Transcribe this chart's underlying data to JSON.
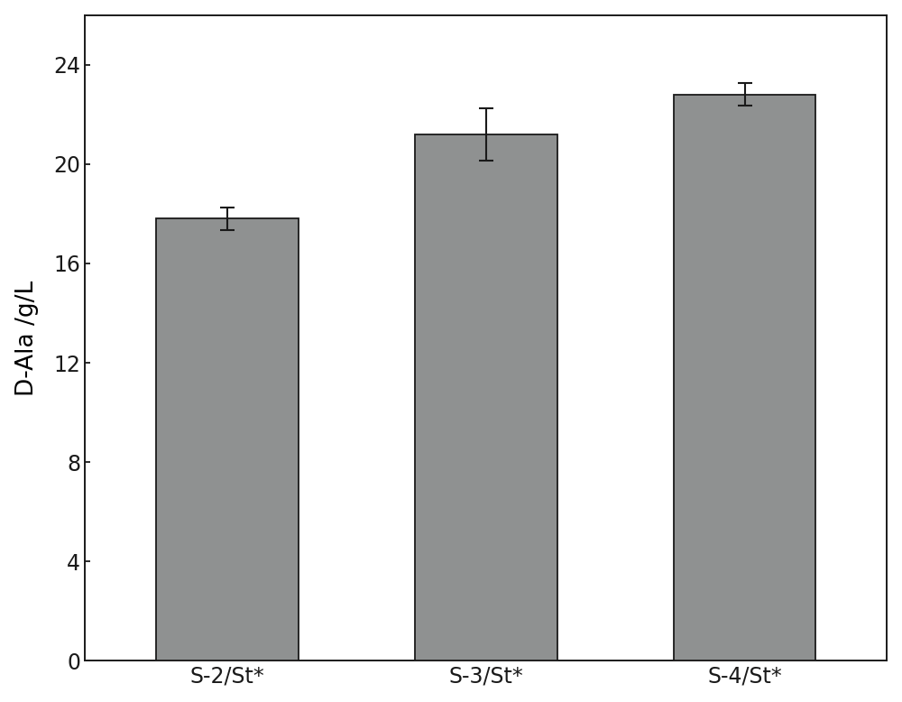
{
  "categories": [
    "S-2/St*",
    "S-3/St*",
    "S-4/St*"
  ],
  "values": [
    17.8,
    21.2,
    22.8
  ],
  "errors": [
    0.45,
    1.05,
    0.45
  ],
  "bar_color": "#8f9191",
  "bar_edgecolor": "#1a1a1a",
  "ylabel": "D-Ala /g/L",
  "ylim": [
    0,
    26
  ],
  "yticks": [
    0,
    4,
    8,
    12,
    16,
    20,
    24
  ],
  "bar_width": 0.55,
  "background_color": "#ffffff",
  "tick_fontsize": 17,
  "label_fontsize": 19,
  "error_capsize": 6,
  "error_linewidth": 1.5,
  "error_color": "#1a1a1a",
  "spine_linewidth": 1.4
}
